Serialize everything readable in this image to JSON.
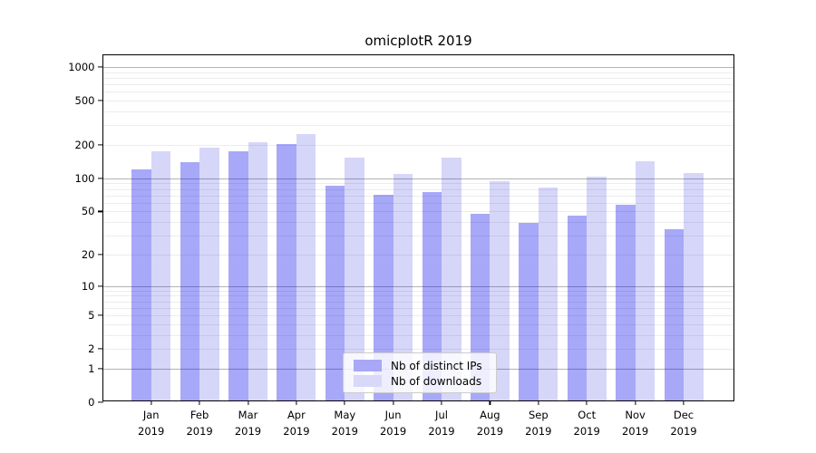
{
  "chart_data": {
    "type": "bar",
    "title": "omicplotR 2019",
    "yscale": "log1p",
    "ylim": [
      0,
      1275
    ],
    "grid": true,
    "legend_position": "lower center",
    "categories": [
      {
        "month": "Jan",
        "year": "2019"
      },
      {
        "month": "Feb",
        "year": "2019"
      },
      {
        "month": "Mar",
        "year": "2019"
      },
      {
        "month": "Apr",
        "year": "2019"
      },
      {
        "month": "May",
        "year": "2019"
      },
      {
        "month": "Jun",
        "year": "2019"
      },
      {
        "month": "Jul",
        "year": "2019"
      },
      {
        "month": "Aug",
        "year": "2019"
      },
      {
        "month": "Sep",
        "year": "2019"
      },
      {
        "month": "Oct",
        "year": "2019"
      },
      {
        "month": "Nov",
        "year": "2019"
      },
      {
        "month": "Dec",
        "year": "2019"
      }
    ],
    "series": [
      {
        "name": "Nb of distinct IPs",
        "slug": "distinct-ips",
        "fill": "rgba(0,0,235,0.34)",
        "swatch": "#a8a8f6",
        "values": [
          117,
          134,
          170,
          195,
          82,
          68,
          73,
          46,
          38,
          44,
          56,
          33
        ]
      },
      {
        "name": "Nb of downloads",
        "slug": "downloads",
        "fill": "rgba(0,0,215,0.16)",
        "swatch": "#d8d8f8",
        "values": [
          168,
          181,
          205,
          240,
          148,
          105,
          149,
          90,
          79,
          99,
          137,
          108
        ]
      }
    ],
    "y_ticks": [
      {
        "value": 1000,
        "label": "1000"
      },
      {
        "value": 500,
        "label": "500"
      },
      {
        "value": 200,
        "label": "200"
      },
      {
        "value": 100,
        "label": "100"
      },
      {
        "value": 50,
        "label": "50"
      },
      {
        "value": 20,
        "label": "20"
      },
      {
        "value": 10,
        "label": "10"
      },
      {
        "value": 5,
        "label": "5"
      },
      {
        "value": 2,
        "label": "2"
      },
      {
        "value": 1,
        "label": "1"
      },
      {
        "value": 0,
        "label": "0"
      }
    ],
    "y_gridlines": {
      "major": [
        1,
        10,
        100,
        1000
      ],
      "minor": [
        2,
        3,
        4,
        5,
        6,
        7,
        8,
        9,
        20,
        30,
        40,
        50,
        60,
        70,
        80,
        90,
        200,
        300,
        400,
        500,
        600,
        700,
        800,
        900
      ]
    },
    "colors": {
      "major_grid": "#b2b2b2",
      "minor_grid": "#ececec",
      "spine": "#000000",
      "legend_border": "#cccccc"
    }
  }
}
